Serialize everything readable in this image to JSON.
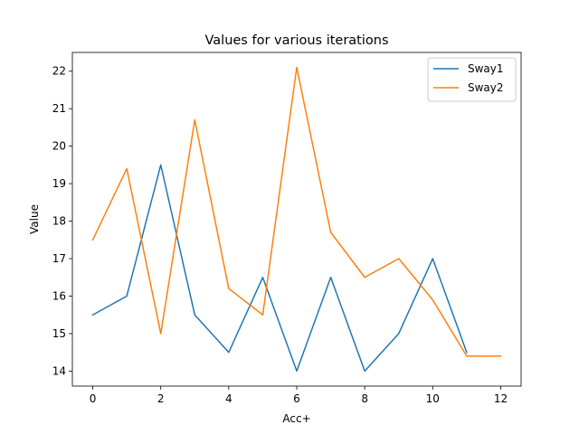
{
  "chart_data": {
    "type": "line",
    "title": "Values for various iterations",
    "xlabel": "Acc+",
    "ylabel": "Value",
    "xlim": [
      -0.6,
      12.6
    ],
    "ylim": [
      13.6,
      22.5
    ],
    "xticks": [
      0,
      2,
      4,
      6,
      8,
      10,
      12
    ],
    "yticks": [
      14,
      15,
      16,
      17,
      18,
      19,
      20,
      21,
      22
    ],
    "grid": false,
    "legend_position": "top-right",
    "series": [
      {
        "name": "Sway1",
        "color": "#1f77b4",
        "x": [
          0,
          1,
          2,
          3,
          4,
          5,
          6,
          7,
          8,
          9,
          10,
          11
        ],
        "y": [
          15.5,
          16.0,
          19.5,
          15.5,
          14.5,
          16.5,
          14.0,
          16.5,
          14.0,
          15.0,
          17.0,
          14.5
        ]
      },
      {
        "name": "Sway2",
        "color": "#ff7f0e",
        "x": [
          0,
          1,
          2,
          3,
          4,
          5,
          6,
          7,
          8,
          9,
          10,
          11,
          12
        ],
        "y": [
          17.5,
          19.4,
          15.0,
          20.7,
          16.2,
          15.5,
          22.1,
          17.7,
          16.5,
          17.0,
          15.9,
          14.4,
          14.4
        ]
      }
    ]
  }
}
